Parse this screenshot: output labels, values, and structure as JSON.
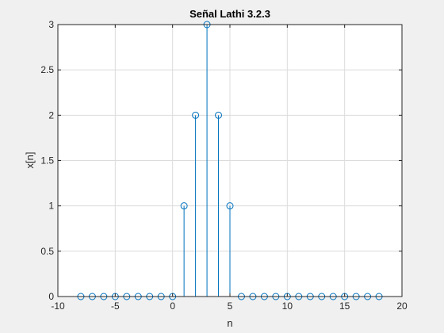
{
  "chart_data": {
    "type": "stem",
    "title": "Señal Lathi 3.2.3",
    "xlabel": "n",
    "ylabel": "x[n]",
    "xlim": [
      -10,
      20
    ],
    "ylim": [
      0,
      3
    ],
    "xticks": [
      -10,
      -5,
      0,
      5,
      10,
      15,
      20
    ],
    "yticks": [
      0,
      0.5,
      1,
      1.5,
      2,
      2.5,
      3
    ],
    "xtick_labels": [
      "-10",
      "-5",
      "0",
      "5",
      "10",
      "15",
      "20"
    ],
    "ytick_labels": [
      "0",
      "0.5",
      "1",
      "1.5",
      "2",
      "2.5",
      "3"
    ],
    "grid": true,
    "series": [
      {
        "x": [
          -8,
          -7,
          -6,
          -5,
          -4,
          -3,
          -2,
          -1,
          0,
          1,
          2,
          3,
          4,
          5,
          6,
          7,
          8,
          9,
          10,
          11,
          12,
          13,
          14,
          15,
          16,
          17,
          18
        ],
        "y": [
          0,
          0,
          0,
          0,
          0,
          0,
          0,
          0,
          0,
          1,
          2,
          3,
          2,
          1,
          0,
          0,
          0,
          0,
          0,
          0,
          0,
          0,
          0,
          0,
          0,
          0,
          0
        ],
        "color": "#0072BD"
      }
    ]
  }
}
